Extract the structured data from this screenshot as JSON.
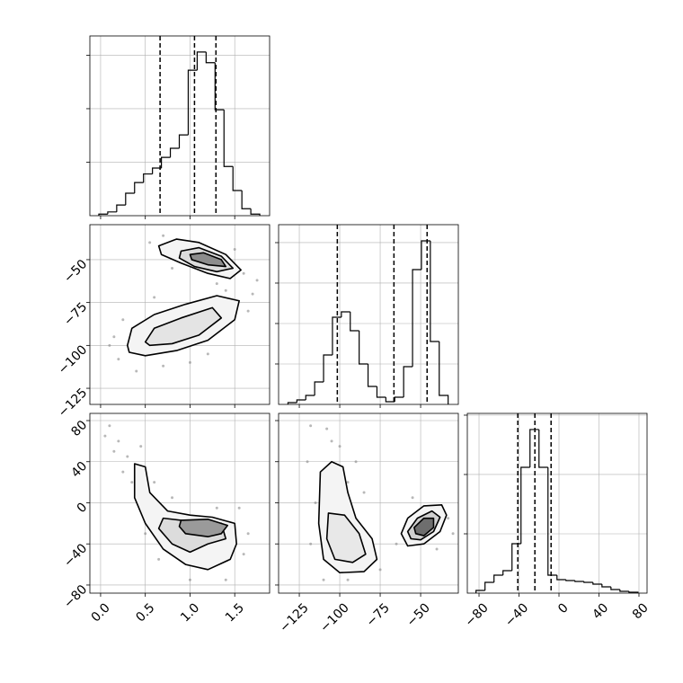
{
  "chart_data": [
    {
      "type": "histogram",
      "color": "#000000",
      "grid": true,
      "xtick_labels": false,
      "ytick_labels": false,
      "bins": [
        -0.02,
        0.08,
        0.18,
        0.28,
        0.38,
        0.48,
        0.58,
        0.68,
        0.78,
        0.88,
        0.98,
        1.08,
        1.18,
        1.28,
        1.38,
        1.48,
        1.58,
        1.68,
        1.78
      ],
      "values": [
        30,
        70,
        200,
        420,
        620,
        780,
        890,
        1090,
        1260,
        1510,
        2720,
        3060,
        2860,
        1980,
        920,
        470,
        130,
        30
      ],
      "quantiles": [
        0.665,
        1.05,
        1.29
      ],
      "xlim": [
        -0.12,
        1.89
      ],
      "xticks": [
        {
          "value": 0,
          "label": "0.0"
        },
        0.5,
        {
          "value": 1,
          "label": "1.0"
        },
        1.5
      ],
      "ylim": [
        0,
        3360
      ],
      "yticks": [
        1000,
        2000,
        3000
      ]
    },
    {
      "type": "scatter",
      "color": "#888888",
      "grid": true,
      "xtick_labels": false,
      "ytick_labels": true,
      "x": [
        0.55,
        0.7,
        1.6,
        1.75,
        0.8,
        1.5,
        1.3,
        0.15,
        0.2,
        0.4,
        0.7,
        1.0,
        1.4,
        1.65,
        0.25,
        1.2,
        0.1,
        0.6,
        1.7
      ],
      "y": [
        -40,
        -36,
        -58,
        -62,
        -55,
        -44,
        -64,
        -95,
        -108,
        -115,
        -112,
        -110,
        -68,
        -80,
        -85,
        -105,
        -100,
        -72,
        -70
      ],
      "contours": [
        {
          "fill": "#f4f4f4",
          "x": [
            0.65,
            0.85,
            1.1,
            1.4,
            1.57,
            1.45,
            1.2,
            0.9,
            0.68
          ],
          "y": [
            -42,
            -38,
            -40,
            -47,
            -56,
            -61,
            -58,
            -52,
            -47
          ]
        },
        {
          "fill": "#dcdcdc",
          "x": [
            0.9,
            1.1,
            1.35,
            1.48,
            1.3,
            1.05,
            0.88
          ],
          "y": [
            -45,
            -43,
            -48,
            -55,
            -57,
            -54,
            -49
          ]
        },
        {
          "fill": "#8c8c8c",
          "x": [
            1.0,
            1.15,
            1.35,
            1.4,
            1.2,
            1.02
          ],
          "y": [
            -47,
            -46,
            -50,
            -54,
            -53,
            -50
          ]
        },
        {
          "fill": "#f4f4f4",
          "x": [
            0.3,
            0.35,
            0.6,
            0.95,
            1.3,
            1.55,
            1.5,
            1.2,
            0.85,
            0.5,
            0.32
          ],
          "y": [
            -100,
            -90,
            -82,
            -76,
            -71,
            -74,
            -85,
            -97,
            -103,
            -106,
            -104
          ]
        },
        {
          "fill": "#e4e4e4",
          "x": [
            0.5,
            0.6,
            0.9,
            1.25,
            1.35,
            1.1,
            0.8,
            0.55
          ],
          "y": [
            -98,
            -90,
            -84,
            -78,
            -84,
            -94,
            -99,
            -100
          ]
        }
      ],
      "xlim": [
        -0.12,
        1.89
      ],
      "xticks": [
        {
          "value": 0,
          "label": "0.0"
        },
        0.5,
        {
          "value": 1,
          "label": "1.0"
        },
        1.5
      ],
      "ylim": [
        -134.4,
        -29.6
      ],
      "yticks": [
        {
          "value": -50,
          "label": "−50"
        },
        {
          "value": -75,
          "label": "−75"
        },
        {
          "value": -100,
          "label": "−100"
        },
        {
          "value": -125,
          "label": "−125"
        }
      ]
    },
    {
      "type": "histogram",
      "color": "#000000",
      "grid": true,
      "xtick_labels": false,
      "ytick_labels": false,
      "bins": [
        -132,
        -126.5,
        -121,
        -115.5,
        -110,
        -104.5,
        -99,
        -93.5,
        -88,
        -82.5,
        -77,
        -71.5,
        -66,
        -60.5,
        -55,
        -49.5,
        -44,
        -38.5,
        -33
      ],
      "values": [
        44,
        111,
        222,
        556,
        1222,
        2156,
        2289,
        1822,
        1000,
        444,
        178,
        67,
        178,
        933,
        3333,
        4044,
        1556,
        222
      ],
      "quantiles": [
        -101.5,
        -66.5,
        -46
      ],
      "xlim": [
        -137.8,
        -26.7
      ],
      "xticks": [
        {
          "value": -125,
          "label": "−125"
        },
        {
          "value": -100,
          "label": "−100"
        },
        {
          "value": -75,
          "label": "−75"
        },
        {
          "value": -50,
          "label": "−50"
        }
      ],
      "ylim": [
        0,
        4444
      ],
      "yticks": [
        1000,
        2000,
        3000,
        4000
      ]
    },
    {
      "type": "scatter",
      "color": "#888888",
      "grid": true,
      "xtick_labels": true,
      "ytick_labels": true,
      "x": [
        0.1,
        0.2,
        0.15,
        0.3,
        0.25,
        0.45,
        0.35,
        0.6,
        0.5,
        0.65,
        1.0,
        1.4,
        1.6,
        1.65,
        1.55,
        0.8,
        0.05,
        1.3
      ],
      "y": [
        75,
        60,
        50,
        45,
        30,
        55,
        20,
        20,
        -30,
        -55,
        -75,
        -75,
        -50,
        -30,
        -5,
        5,
        65,
        -5
      ],
      "contours": [
        {
          "fill": "#f4f4f4",
          "x": [
            0.38,
            0.5,
            0.55,
            0.75,
            1.0,
            1.25,
            1.5,
            1.52,
            1.45,
            1.2,
            0.95,
            0.7,
            0.5,
            0.38
          ],
          "y": [
            38,
            35,
            10,
            -8,
            -12,
            -14,
            -20,
            -40,
            -55,
            -65,
            -60,
            -45,
            -20,
            5
          ]
        },
        {
          "fill": "#dcdcdc",
          "x": [
            0.7,
            1.0,
            1.35,
            1.4,
            1.2,
            1.0,
            0.8,
            0.65
          ],
          "y": [
            -15,
            -18,
            -20,
            -35,
            -40,
            -48,
            -40,
            -25
          ]
        },
        {
          "fill": "#9a9a9a",
          "x": [
            0.9,
            1.2,
            1.42,
            1.35,
            1.2,
            0.95,
            0.88
          ],
          "y": [
            -17,
            -16,
            -22,
            -30,
            -33,
            -30,
            -23
          ]
        }
      ],
      "xlim": [
        -0.12,
        1.89
      ],
      "xticks": [
        {
          "value": 0,
          "label": "0.0"
        },
        0.5,
        {
          "value": 1,
          "label": "1.0"
        },
        1.5
      ],
      "ylim": [
        -87.9,
        87
      ],
      "yticks": [
        80,
        40,
        0,
        {
          "value": -40,
          "label": "−40"
        },
        {
          "value": -80,
          "label": "−80"
        }
      ]
    },
    {
      "type": "scatter",
      "color": "#888888",
      "grid": true,
      "xtick_labels": true,
      "ytick_labels": false,
      "x": [
        -118,
        -105,
        -100,
        -120,
        -115,
        -118,
        -110,
        -95,
        -75,
        -85,
        -90,
        -108,
        -65,
        -33,
        -40,
        -55,
        -30,
        -95
      ],
      "y": [
        75,
        60,
        55,
        40,
        0,
        -40,
        -75,
        -75,
        -65,
        10,
        40,
        72,
        -40,
        -15,
        -45,
        5,
        -30,
        20
      ],
      "contours": [
        {
          "fill": "#f4f4f4",
          "x": [
            -112,
            -105,
            -98,
            -95,
            -90,
            -80,
            -77,
            -85,
            -100,
            -110,
            -113
          ],
          "y": [
            30,
            40,
            35,
            10,
            -15,
            -35,
            -55,
            -67,
            -68,
            -55,
            -20
          ]
        },
        {
          "fill": "#e8e8e8",
          "x": [
            -107,
            -97,
            -88,
            -84,
            -92,
            -103,
            -108
          ],
          "y": [
            -10,
            -12,
            -30,
            -50,
            -58,
            -55,
            -35
          ]
        },
        {
          "fill": "#f4f4f4",
          "x": [
            -62,
            -58,
            -48,
            -37,
            -34,
            -38,
            -48,
            -58
          ],
          "y": [
            -30,
            -15,
            -3,
            -2,
            -12,
            -28,
            -40,
            -42
          ]
        },
        {
          "fill": "#cfcfcf",
          "x": [
            -58,
            -52,
            -43,
            -38,
            -42,
            -50,
            -56
          ],
          "y": [
            -28,
            -15,
            -8,
            -14,
            -28,
            -36,
            -35
          ]
        },
        {
          "fill": "#6e6e6e",
          "x": [
            -54,
            -48,
            -42,
            -42,
            -48,
            -53
          ],
          "y": [
            -24,
            -15,
            -15,
            -24,
            -32,
            -30
          ]
        }
      ],
      "xlim": [
        -137.8,
        -26.7
      ],
      "xticks": [
        {
          "value": -125,
          "label": "−125"
        },
        {
          "value": -100,
          "label": "−100"
        },
        {
          "value": -75,
          "label": "−75"
        },
        {
          "value": -50,
          "label": "−50"
        }
      ],
      "ylim": [
        -87.9,
        87
      ],
      "yticks": [
        80,
        40,
        0,
        {
          "value": -40,
          "label": "−40"
        },
        {
          "value": -80,
          "label": "−80"
        }
      ]
    },
    {
      "type": "histogram",
      "color": "#000000",
      "grid": true,
      "xtick_labels": true,
      "ytick_labels": false,
      "bins": [
        -83,
        -74,
        -65,
        -56,
        -47,
        -38,
        -29,
        -20,
        -11,
        -2,
        7,
        16,
        25,
        34,
        43,
        52,
        61,
        70,
        79
      ],
      "values": [
        45,
        182,
        303,
        379,
        833,
        2121,
        2758,
        2121,
        303,
        227,
        212,
        197,
        182,
        152,
        106,
        61,
        30,
        15
      ],
      "quantiles": [
        -41.2,
        -24.1,
        -7.9
      ],
      "xlim": [
        -91.7,
        88.1
      ],
      "xticks": [
        {
          "value": -80,
          "label": "−80"
        },
        {
          "value": -40,
          "label": "−40"
        },
        0,
        40,
        80
      ],
      "ylim": [
        0,
        3030
      ],
      "yticks": [
        1000,
        2000,
        3000
      ]
    }
  ]
}
